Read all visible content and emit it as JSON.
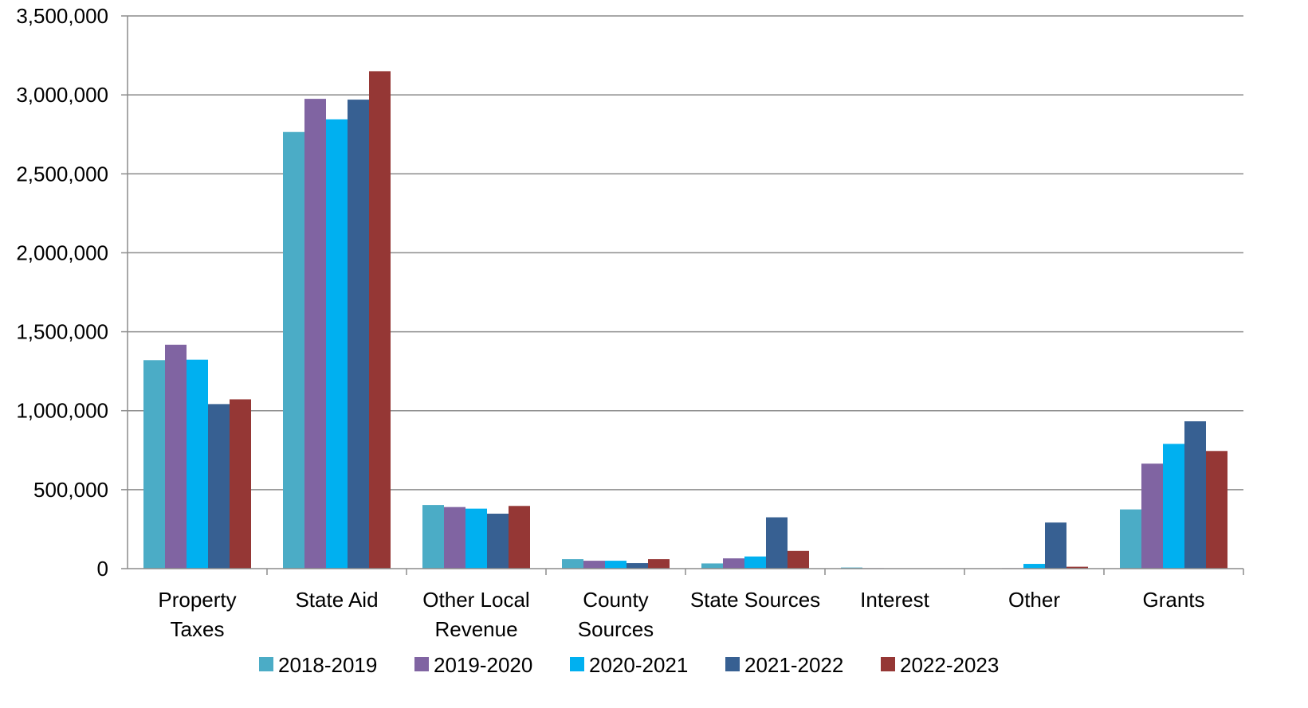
{
  "chart_data": {
    "type": "bar",
    "categories": [
      [
        "Property",
        "Taxes"
      ],
      [
        "State Aid"
      ],
      [
        "Other Local",
        "Revenue"
      ],
      [
        "County",
        "Sources"
      ],
      [
        "State Sources"
      ],
      [
        "Interest"
      ],
      [
        "Other"
      ],
      [
        "Grants"
      ]
    ],
    "series": [
      {
        "name": "2018-2019",
        "color": "#4BACC6",
        "values": [
          1320000,
          2765000,
          403000,
          60000,
          33000,
          7000,
          0,
          375000
        ]
      },
      {
        "name": "2019-2020",
        "color": "#8064A2",
        "values": [
          1418000,
          2975000,
          390000,
          50000,
          65000,
          3000,
          3000,
          665000
        ]
      },
      {
        "name": "2020-2021",
        "color": "#00B0F0",
        "values": [
          1323000,
          2845000,
          380000,
          50000,
          77000,
          2000,
          30000,
          790000
        ]
      },
      {
        "name": "2021-2022",
        "color": "#376092",
        "values": [
          1042000,
          2970000,
          348000,
          35000,
          325000,
          1000,
          292000,
          933000
        ]
      },
      {
        "name": "2022-2023",
        "color": "#953735",
        "values": [
          1072000,
          3150000,
          397000,
          60000,
          112000,
          1000,
          12000,
          745000
        ]
      }
    ],
    "yticks": [
      "0",
      "500,000",
      "1,000,000",
      "1,500,000",
      "2,000,000",
      "2,500,000",
      "3,000,000",
      "3,500,000"
    ],
    "ylim": [
      0,
      3500000
    ],
    "grid": true,
    "legend_position": "bottom",
    "title": "",
    "xlabel": "",
    "ylabel": ""
  }
}
